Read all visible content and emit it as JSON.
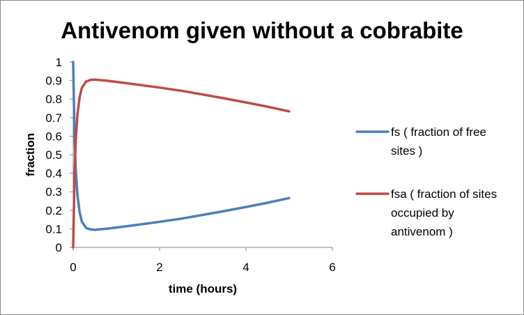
{
  "chart_data": {
    "type": "line",
    "title": "Antivenom given without a cobrabite",
    "xlabel": "time (hours)",
    "ylabel": "fraction",
    "xlim": [
      0,
      6
    ],
    "ylim": [
      0,
      1
    ],
    "x_ticks": [
      "0",
      "2",
      "4",
      "6"
    ],
    "y_ticks": [
      "0",
      "0.1",
      "0.2",
      "0.3",
      "0.4",
      "0.5",
      "0.6",
      "0.7",
      "0.8",
      "0.9",
      "1"
    ],
    "grid": false,
    "legend_position": "right",
    "series": [
      {
        "name": "fs ( fraction of free sites )",
        "legend_lines": [
          "fs ( fraction of free",
          "sites )"
        ],
        "color": "#4a7ebb",
        "x": [
          0,
          0.03,
          0.06,
          0.1,
          0.15,
          0.2,
          0.3,
          0.4,
          0.5,
          0.75,
          1,
          1.5,
          2,
          2.5,
          3,
          3.5,
          4,
          4.5,
          5
        ],
        "y": [
          1,
          0.62,
          0.42,
          0.28,
          0.19,
          0.14,
          0.105,
          0.097,
          0.095,
          0.1,
          0.107,
          0.122,
          0.138,
          0.155,
          0.175,
          0.196,
          0.218,
          0.241,
          0.266
        ]
      },
      {
        "name": "fsa ( fraction of sites occupied by antivenom )",
        "legend_lines": [
          "fsa ( fraction of sites",
          "occupied by",
          "antivenom )"
        ],
        "color": "#be4b48",
        "x": [
          0,
          0.03,
          0.06,
          0.1,
          0.15,
          0.2,
          0.3,
          0.4,
          0.5,
          0.75,
          1,
          1.5,
          2,
          2.5,
          3,
          3.5,
          4,
          4.5,
          5
        ],
        "y": [
          0,
          0.38,
          0.58,
          0.72,
          0.81,
          0.86,
          0.895,
          0.903,
          0.905,
          0.9,
          0.893,
          0.878,
          0.862,
          0.845,
          0.825,
          0.804,
          0.782,
          0.759,
          0.734
        ]
      }
    ]
  }
}
